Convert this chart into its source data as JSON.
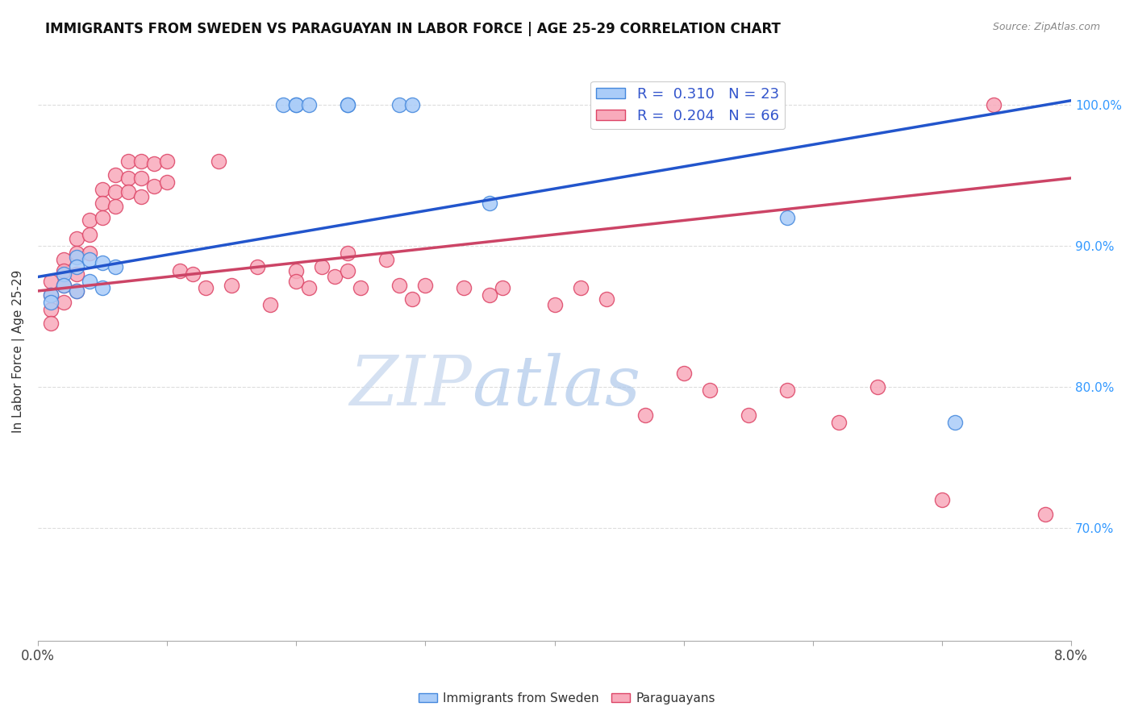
{
  "title": "IMMIGRANTS FROM SWEDEN VS PARAGUAYAN IN LABOR FORCE | AGE 25-29 CORRELATION CHART",
  "source": "Source: ZipAtlas.com",
  "ylabel": "In Labor Force | Age 25-29",
  "xlim": [
    0.0,
    0.08
  ],
  "ylim": [
    0.62,
    1.03
  ],
  "sweden_R": "0.310",
  "sweden_N": "23",
  "paraguay_R": "0.204",
  "paraguay_N": "66",
  "sweden_color": "#aaccf8",
  "paraguay_color": "#f8aabb",
  "sweden_edge_color": "#4488dd",
  "paraguay_edge_color": "#dd4466",
  "sweden_line_color": "#2255cc",
  "paraguay_line_color": "#cc4466",
  "sweden_x": [
    0.001,
    0.001,
    0.002,
    0.002,
    0.003,
    0.003,
    0.003,
    0.004,
    0.004,
    0.005,
    0.005,
    0.006,
    0.019,
    0.02,
    0.02,
    0.021,
    0.024,
    0.024,
    0.028,
    0.029,
    0.035,
    0.058,
    0.071
  ],
  "sweden_y": [
    0.865,
    0.86,
    0.88,
    0.872,
    0.892,
    0.885,
    0.868,
    0.89,
    0.875,
    0.888,
    0.87,
    0.885,
    1.0,
    1.0,
    1.0,
    1.0,
    1.0,
    1.0,
    1.0,
    1.0,
    0.93,
    0.92,
    0.775
  ],
  "paraguay_x": [
    0.001,
    0.001,
    0.001,
    0.001,
    0.002,
    0.002,
    0.002,
    0.002,
    0.003,
    0.003,
    0.003,
    0.003,
    0.004,
    0.004,
    0.004,
    0.005,
    0.005,
    0.005,
    0.006,
    0.006,
    0.006,
    0.007,
    0.007,
    0.007,
    0.008,
    0.008,
    0.008,
    0.009,
    0.009,
    0.01,
    0.01,
    0.011,
    0.012,
    0.013,
    0.014,
    0.015,
    0.017,
    0.018,
    0.02,
    0.02,
    0.021,
    0.022,
    0.023,
    0.024,
    0.024,
    0.025,
    0.027,
    0.028,
    0.029,
    0.03,
    0.033,
    0.035,
    0.036,
    0.04,
    0.042,
    0.044,
    0.047,
    0.05,
    0.052,
    0.055,
    0.058,
    0.062,
    0.065,
    0.07,
    0.074,
    0.078
  ],
  "paraguay_y": [
    0.875,
    0.865,
    0.855,
    0.845,
    0.89,
    0.882,
    0.872,
    0.86,
    0.905,
    0.895,
    0.88,
    0.868,
    0.918,
    0.908,
    0.895,
    0.94,
    0.93,
    0.92,
    0.95,
    0.938,
    0.928,
    0.96,
    0.948,
    0.938,
    0.96,
    0.948,
    0.935,
    0.958,
    0.942,
    0.96,
    0.945,
    0.882,
    0.88,
    0.87,
    0.96,
    0.872,
    0.885,
    0.858,
    0.882,
    0.875,
    0.87,
    0.885,
    0.878,
    0.895,
    0.882,
    0.87,
    0.89,
    0.872,
    0.862,
    0.872,
    0.87,
    0.865,
    0.87,
    0.858,
    0.87,
    0.862,
    0.78,
    0.81,
    0.798,
    0.78,
    0.798,
    0.775,
    0.8,
    0.72,
    1.0,
    0.71
  ],
  "watermark_zip": "ZIP",
  "watermark_atlas": "atlas",
  "background_color": "#ffffff",
  "grid_color": "#dddddd",
  "sweden_line_x0": 0.0,
  "sweden_line_y0": 0.878,
  "sweden_line_x1": 0.08,
  "sweden_line_y1": 1.003,
  "paraguay_line_x0": 0.0,
  "paraguay_line_y0": 0.868,
  "paraguay_line_x1": 0.08,
  "paraguay_line_y1": 0.948
}
